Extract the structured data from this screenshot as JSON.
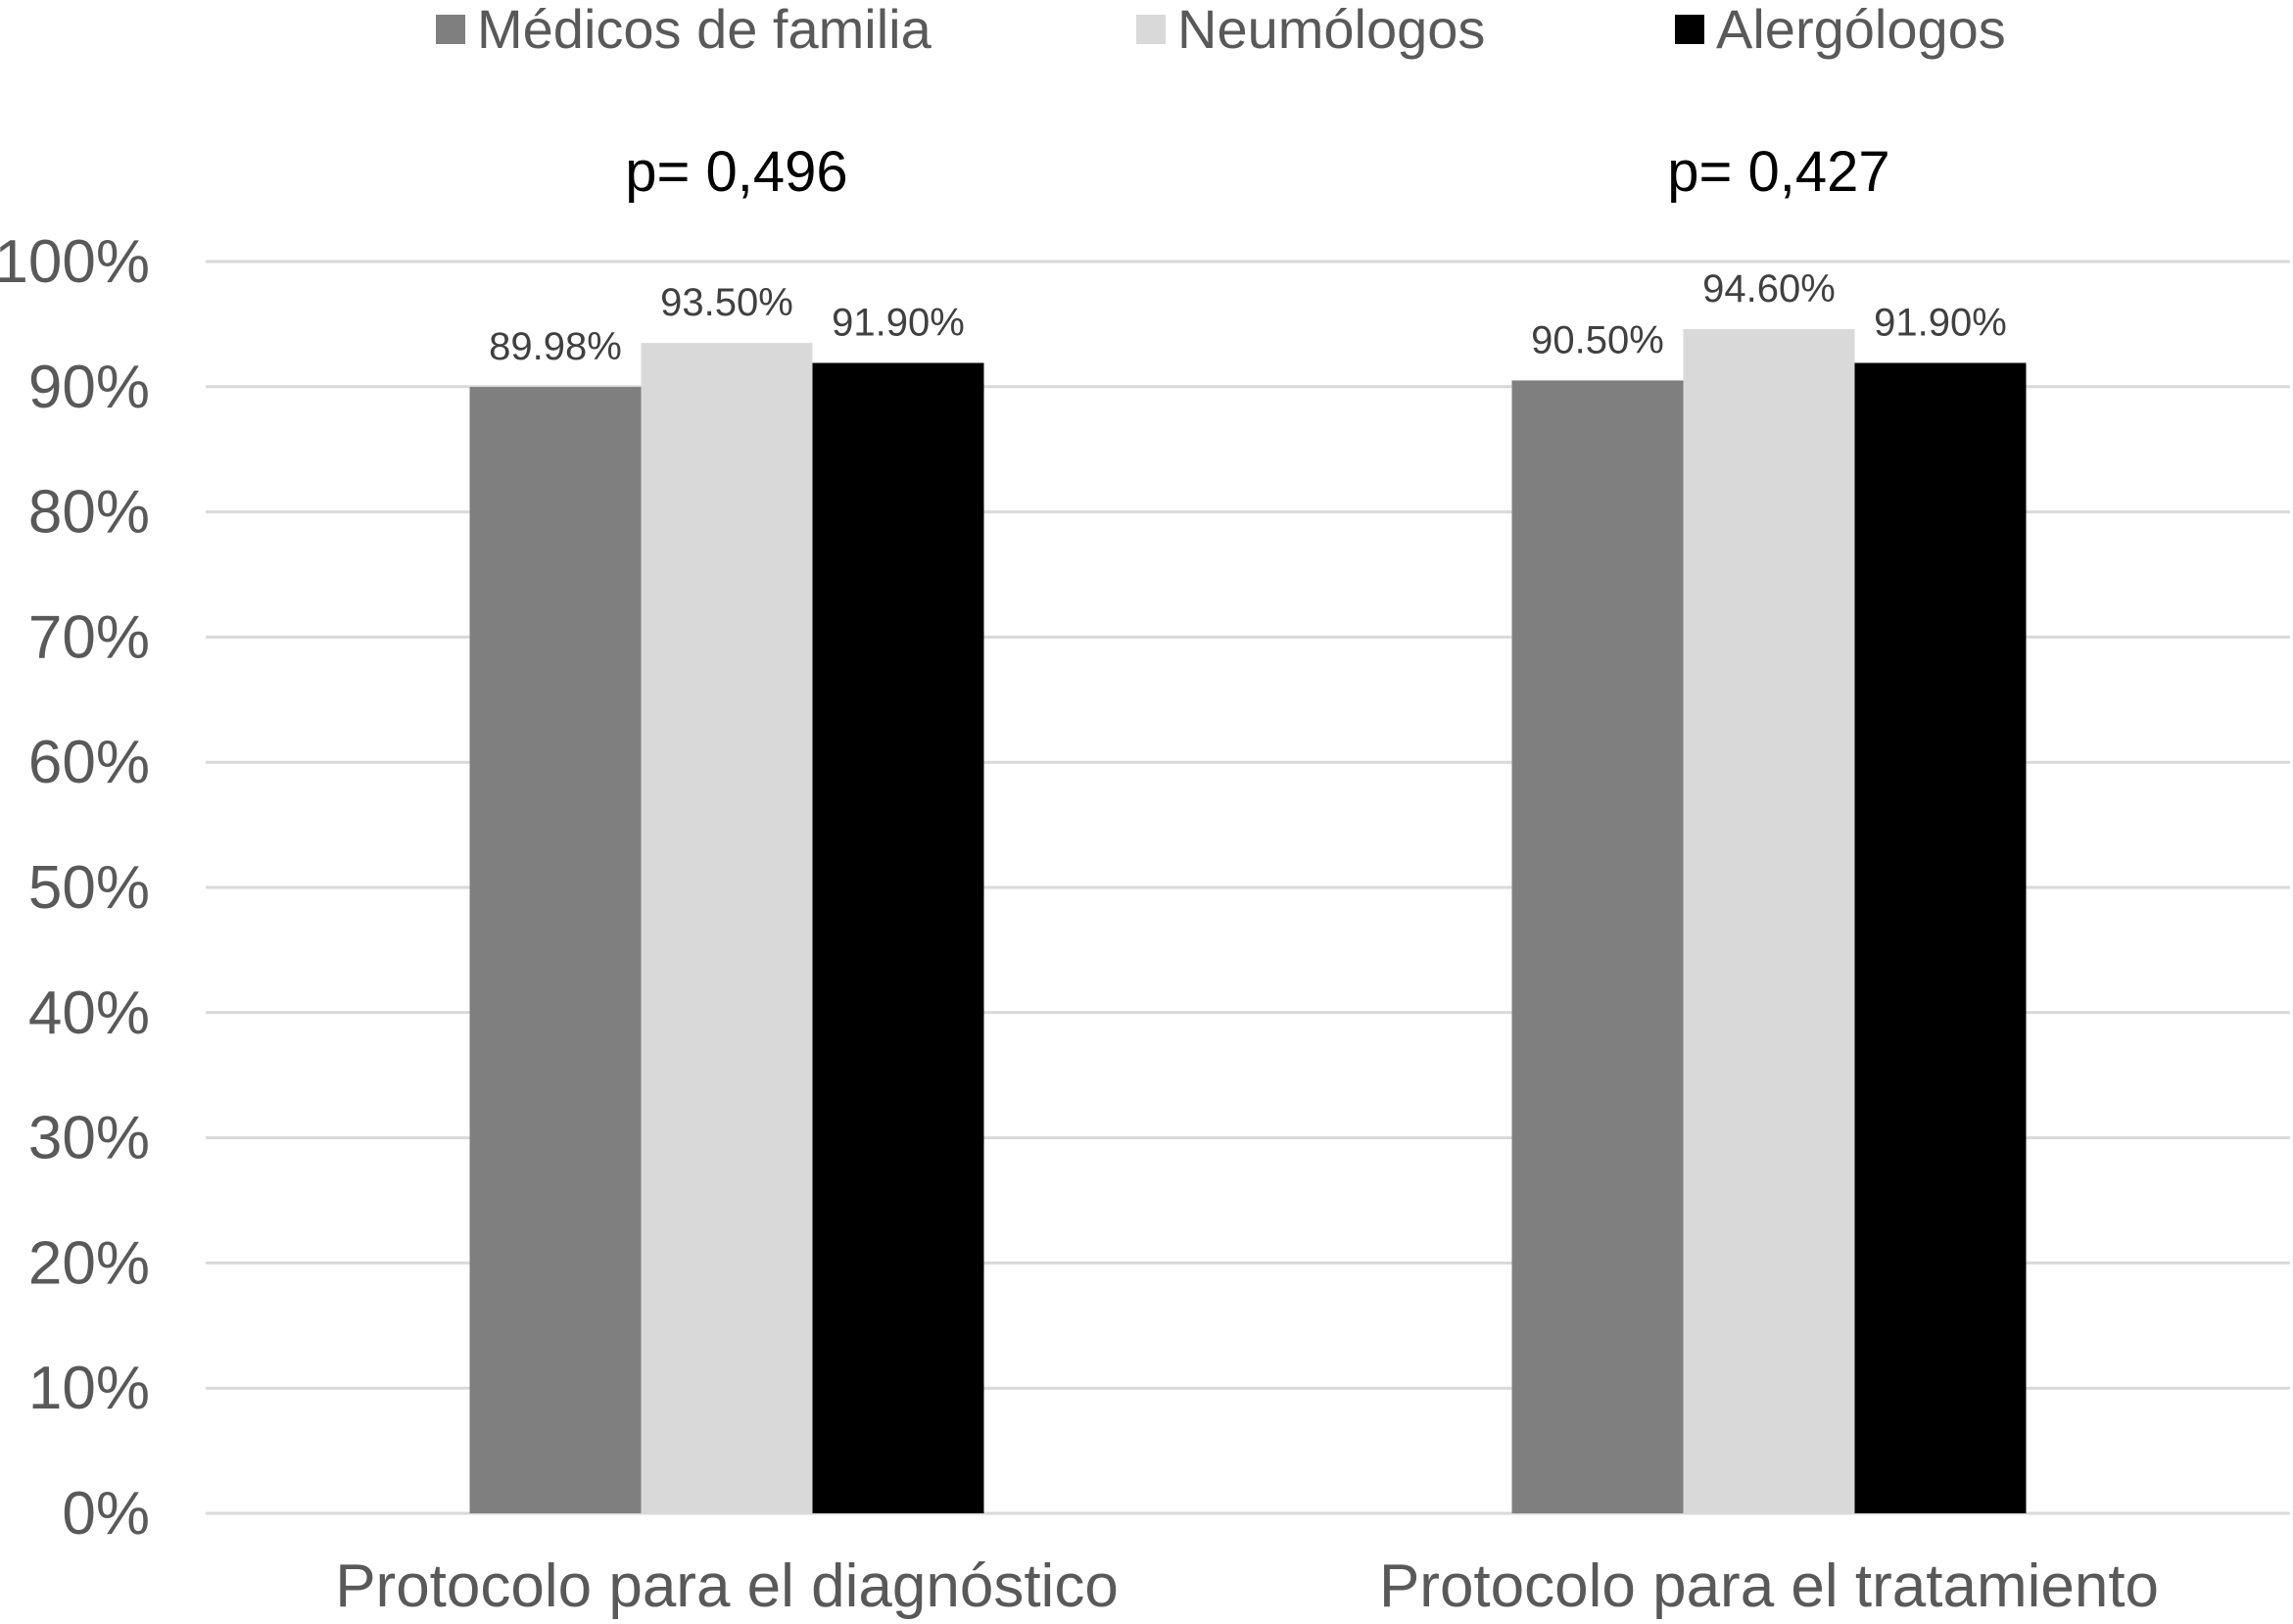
{
  "chart_data": {
    "type": "bar",
    "categories": [
      "Protocolo para el diagnóstico",
      "Protocolo para el tratamiento"
    ],
    "series": [
      {
        "name": "Médicos de familia",
        "values": [
          89.98,
          90.5
        ],
        "labels": [
          "89.98%",
          "90.50%"
        ],
        "color": "#7f7f7f"
      },
      {
        "name": "Neumólogos",
        "values": [
          93.5,
          94.6
        ],
        "labels": [
          "93.50%",
          "94.60%"
        ],
        "color": "#d9d9d9"
      },
      {
        "name": "Alergólogos",
        "values": [
          91.9,
          91.9
        ],
        "labels": [
          "91.90%",
          "91.90%"
        ],
        "color": "#000000"
      }
    ],
    "annotations": [
      "p= 0,496",
      "p= 0,427"
    ],
    "yticks": [
      "0%",
      "10%",
      "20%",
      "30%",
      "40%",
      "50%",
      "60%",
      "70%",
      "80%",
      "90%",
      "100%"
    ],
    "ylim": [
      0,
      100
    ],
    "grid": true,
    "legend_position": "top",
    "title": "",
    "xlabel": "",
    "ylabel": ""
  },
  "colors": {
    "gridline": "#d9d9d9",
    "tick_text": "#595959"
  }
}
